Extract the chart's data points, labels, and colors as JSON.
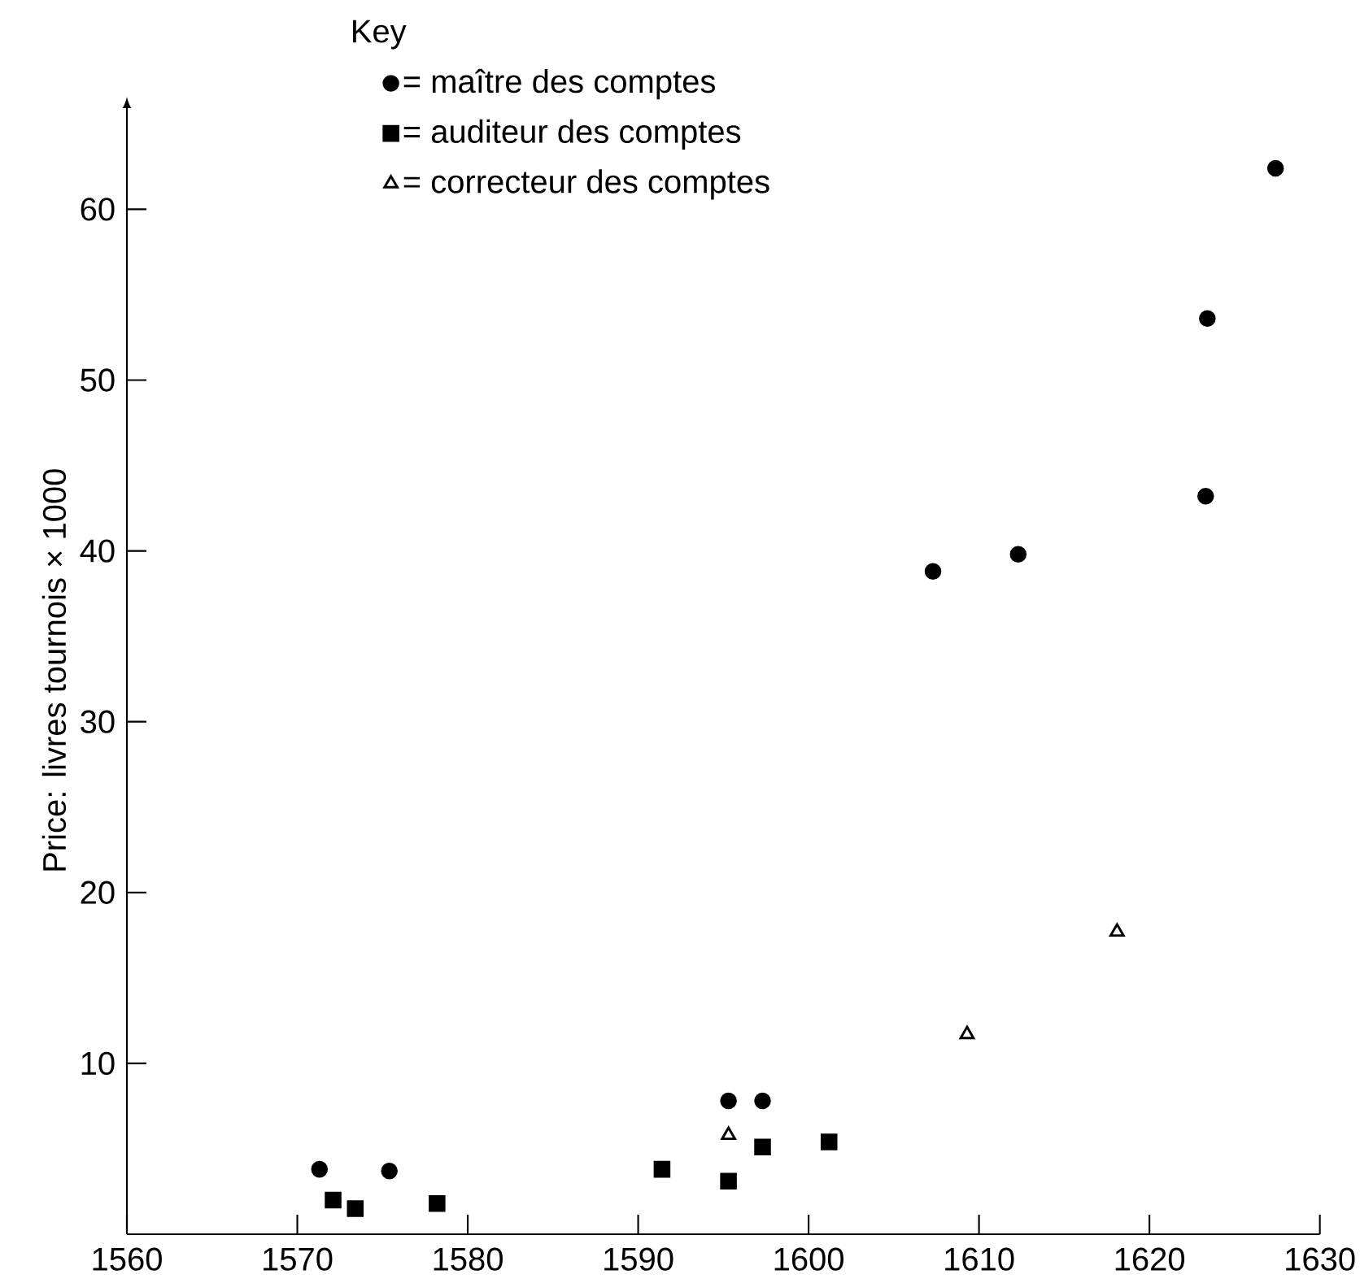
{
  "chart_data": {
    "type": "scatter",
    "ylabel": "Price: livres tournois × 1000",
    "legend_title": "Key",
    "legend": "top",
    "xlim": [
      1560,
      1630
    ],
    "xticks": [
      1560,
      1570,
      1580,
      1590,
      1600,
      1610,
      1620,
      1630
    ],
    "ylim": [
      0,
      66
    ],
    "yticks": [
      10,
      20,
      30,
      40,
      50,
      60
    ],
    "series": [
      {
        "name": "= maître des comptes",
        "color": "#000000",
        "marker": "circle",
        "x": [
          1571.3,
          1575.4,
          1595.3,
          1597.3,
          1607.3,
          1612.3,
          1623.3,
          1623.4,
          1627.4
        ],
        "values": [
          3.8,
          3.7,
          7.8,
          7.8,
          38.8,
          39.8,
          43.2,
          53.6,
          62.4
        ]
      },
      {
        "name": "= auditeur des comptes",
        "color": "#000000",
        "marker": "square",
        "x": [
          1572.1,
          1573.4,
          1578.2,
          1591.4,
          1595.3,
          1597.3,
          1601.2
        ],
        "values": [
          2.0,
          1.5,
          1.8,
          3.8,
          3.1,
          5.1,
          5.4
        ]
      },
      {
        "name": "= correcteur des comptes",
        "color": "#000000",
        "marker": "triangle",
        "x": [
          1595.3,
          1609.3,
          1618.1
        ],
        "values": [
          5.8,
          11.7,
          17.7
        ]
      }
    ]
  }
}
